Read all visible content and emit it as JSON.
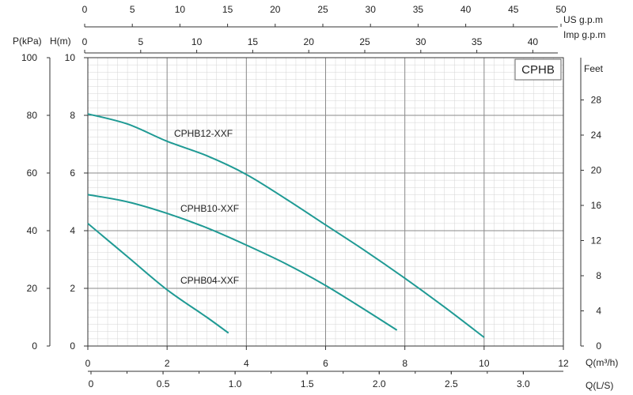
{
  "chart_data": {
    "type": "line",
    "title": "CPHB",
    "x_primary": {
      "label": "Q(m³/h)",
      "range": [
        0,
        12
      ],
      "ticks": [
        0,
        2,
        4,
        6,
        8,
        10,
        12
      ]
    },
    "x_ls": {
      "label": "Q(L/S)",
      "ticks": [
        "0",
        "0.5",
        "1.0",
        "1.5",
        "2.0",
        "2.5",
        "3.0"
      ]
    },
    "x_us": {
      "label": "US  g.p.m",
      "ticks": [
        0,
        5,
        10,
        15,
        20,
        25,
        30,
        35,
        40,
        45,
        50
      ]
    },
    "x_imp": {
      "label": "Imp  g.p.m",
      "ticks": [
        0,
        5,
        10,
        15,
        20,
        25,
        30,
        35,
        40
      ]
    },
    "y_primary": {
      "label": "H(m)",
      "range": [
        0,
        10
      ],
      "ticks": [
        0,
        2,
        4,
        6,
        8,
        10
      ]
    },
    "y_kpa": {
      "label": "P(kPa)",
      "ticks": [
        0,
        20,
        40,
        60,
        80,
        100
      ]
    },
    "y_feet": {
      "label": "Feet",
      "ticks": [
        0,
        4,
        8,
        12,
        16,
        20,
        24,
        28
      ]
    },
    "series": [
      {
        "name": "CPHB12-XXF",
        "x": [
          0,
          1,
          2,
          3,
          4,
          5,
          6,
          7,
          8,
          9,
          10
        ],
        "y": [
          8.05,
          7.7,
          7.1,
          6.6,
          5.95,
          5.1,
          4.2,
          3.3,
          2.35,
          1.35,
          0.3
        ]
      },
      {
        "name": "CPHB10-XXF",
        "x": [
          0,
          1,
          2,
          3,
          4,
          5,
          6,
          7,
          7.8
        ],
        "y": [
          5.25,
          5.0,
          4.6,
          4.1,
          3.5,
          2.85,
          2.1,
          1.25,
          0.55
        ]
      },
      {
        "name": "CPHB04-XXF",
        "x": [
          0,
          1,
          2,
          3,
          3.55
        ],
        "y": [
          4.25,
          3.1,
          1.95,
          1.0,
          0.45
        ]
      }
    ],
    "colors": {
      "curve": "#1f9a94"
    }
  }
}
